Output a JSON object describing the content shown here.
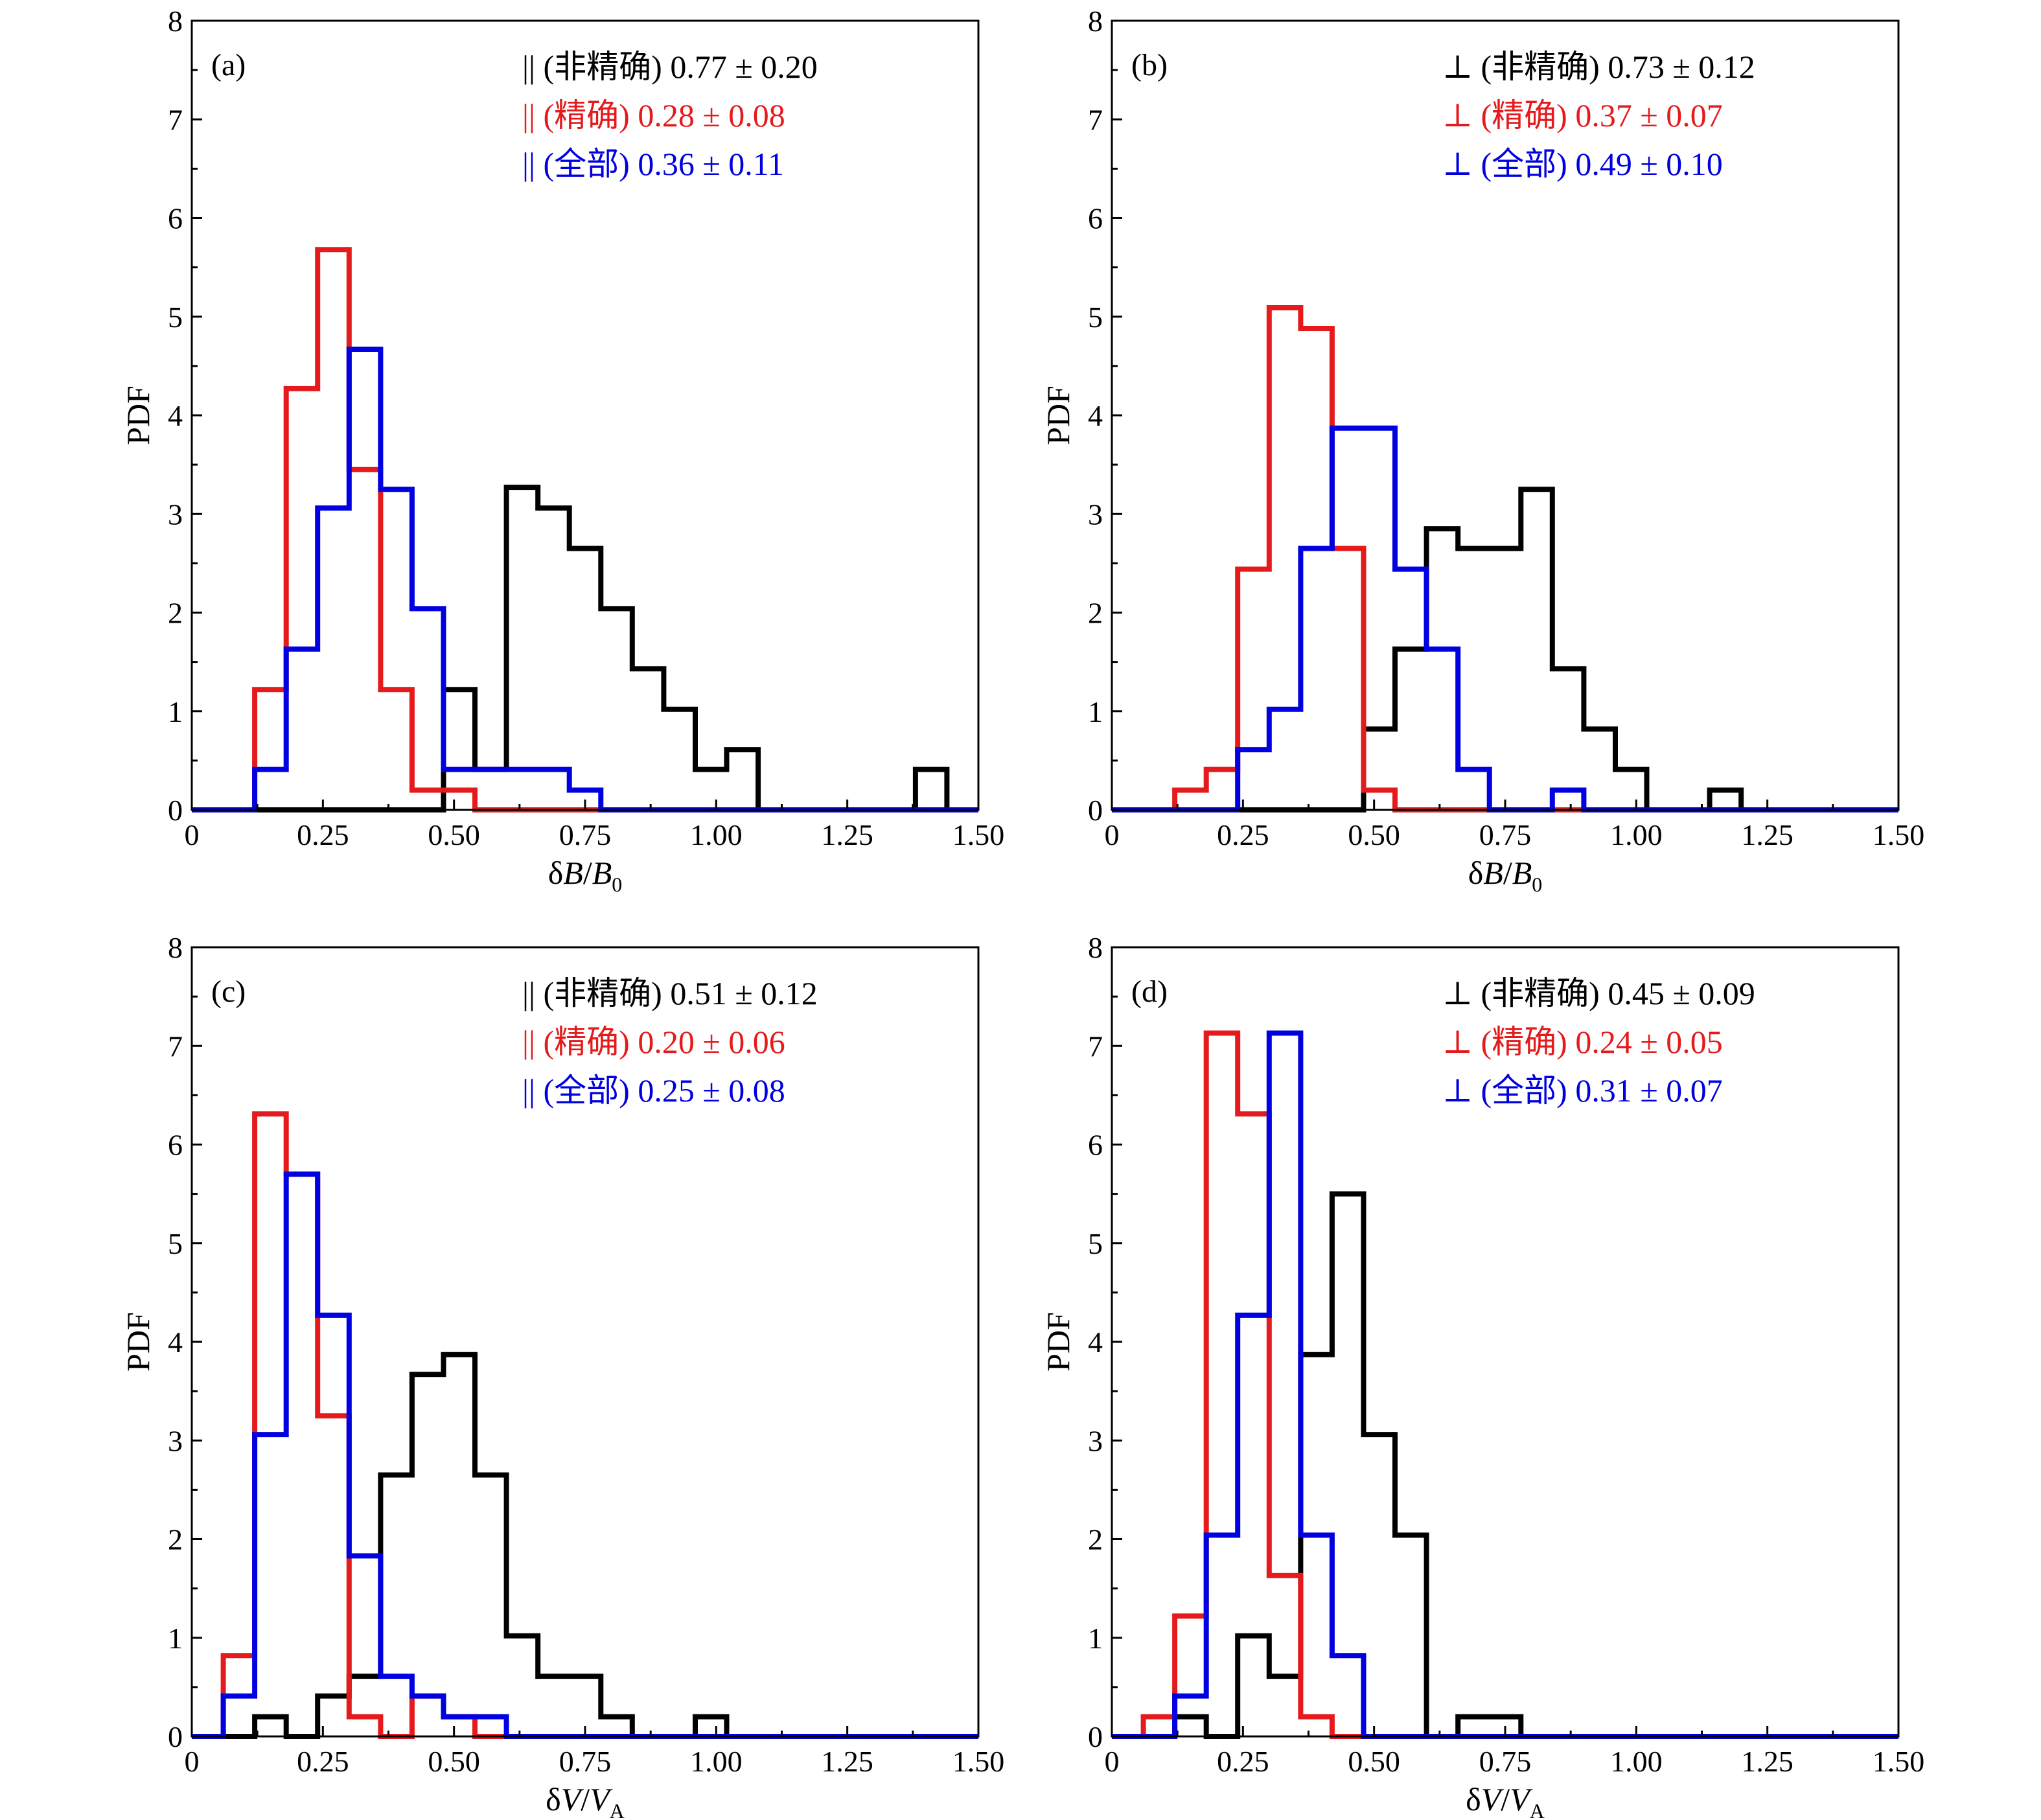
{
  "figure": {
    "colors": {
      "non_precise": "#000000",
      "precise": "#e41a1c",
      "all": "#0000e0"
    }
  },
  "chart_data": [
    {
      "panel_label": "(a)",
      "type": "bar",
      "style": "step-histogram",
      "xlabel_parts": [
        "δ",
        "B",
        "/",
        "B",
        "0"
      ],
      "ylabel": "PDF",
      "xlim": [
        0,
        1.5
      ],
      "ylim": [
        0,
        8
      ],
      "bin_width": 0.06,
      "x_ticks": [
        "0",
        "0.25",
        "0.50",
        "0.75",
        "1.00",
        "1.25",
        "1.50"
      ],
      "y_ticks": [
        "0",
        "1",
        "2",
        "3",
        "4",
        "5",
        "6",
        "7",
        "8"
      ],
      "legend": [
        {
          "series": "non_precise",
          "symbol": "||",
          "label": "(非精确)",
          "stat": "0.77 ± 0.20"
        },
        {
          "series": "precise",
          "symbol": "||",
          "label": "(精确)",
          "stat": "0.28 ± 0.08"
        },
        {
          "series": "all",
          "symbol": "||",
          "label": "(全部)",
          "stat": "0.36 ± 0.11"
        }
      ],
      "series": [
        {
          "key": "non_precise",
          "edges": [
            0,
            0.48,
            0.54,
            0.6,
            0.66,
            0.72,
            0.78,
            0.84,
            0.9,
            0.96,
            1.02,
            1.08,
            1.38,
            1.44,
            1.5
          ],
          "values": [
            0,
            1.22,
            0.41,
            3.27,
            3.06,
            2.65,
            2.04,
            1.43,
            1.02,
            0.41,
            0.61,
            0,
            0.41,
            0
          ]
        },
        {
          "key": "precise",
          "edges": [
            0,
            0.12,
            0.18,
            0.24,
            0.3,
            0.36,
            0.42,
            0.48,
            0.54,
            1.38,
            1.44,
            1.5
          ],
          "values": [
            0,
            1.22,
            4.27,
            5.68,
            3.45,
            1.22,
            0.2,
            0.2,
            0,
            0,
            0
          ]
        },
        {
          "key": "all",
          "edges": [
            0,
            0.12,
            0.18,
            0.24,
            0.3,
            0.36,
            0.42,
            0.48,
            0.54,
            0.72,
            0.78,
            1.5
          ],
          "values": [
            0,
            0.41,
            1.63,
            3.06,
            4.67,
            3.25,
            2.04,
            0.41,
            0.41,
            0.2,
            0
          ]
        }
      ]
    },
    {
      "panel_label": "(b)",
      "type": "bar",
      "style": "step-histogram",
      "xlabel_parts": [
        "δ",
        "B",
        "/",
        "B",
        "0"
      ],
      "ylabel": "PDF",
      "xlim": [
        0,
        1.5
      ],
      "ylim": [
        0,
        8
      ],
      "bin_width": 0.06,
      "x_ticks": [
        "0",
        "0.25",
        "0.50",
        "0.75",
        "1.00",
        "1.25",
        "1.50"
      ],
      "y_ticks": [
        "0",
        "1",
        "2",
        "3",
        "4",
        "5",
        "6",
        "7",
        "8"
      ],
      "legend": [
        {
          "series": "non_precise",
          "symbol": "⊥",
          "label": "(非精确)",
          "stat": "0.73 ± 0.12"
        },
        {
          "series": "precise",
          "symbol": "⊥",
          "label": "(精确)",
          "stat": "0.37 ± 0.07"
        },
        {
          "series": "all",
          "symbol": "⊥",
          "label": "(全部)",
          "stat": "0.49 ± 0.10"
        }
      ],
      "series": [
        {
          "key": "non_precise",
          "edges": [
            0,
            0.48,
            0.54,
            0.6,
            0.66,
            0.72,
            0.78,
            0.84,
            0.9,
            0.96,
            1.02,
            1.14,
            1.2,
            1.5
          ],
          "values": [
            0,
            0.82,
            1.63,
            2.85,
            2.65,
            2.65,
            3.25,
            1.43,
            0.82,
            0.41,
            0,
            0.2,
            0
          ]
        },
        {
          "key": "precise",
          "edges": [
            0,
            0.12,
            0.18,
            0.24,
            0.3,
            0.36,
            0.42,
            0.48,
            0.54,
            0.6,
            1.5
          ],
          "values": [
            0,
            0.2,
            0.41,
            2.44,
            5.09,
            4.88,
            2.65,
            0.2,
            0,
            0
          ]
        },
        {
          "key": "all",
          "edges": [
            0,
            0.24,
            0.3,
            0.36,
            0.42,
            0.48,
            0.54,
            0.6,
            0.66,
            0.72,
            0.84,
            0.9,
            1.5
          ],
          "values": [
            0,
            0.61,
            1.02,
            2.65,
            3.87,
            3.87,
            2.44,
            1.63,
            0.41,
            0,
            0.2,
            0
          ]
        }
      ]
    },
    {
      "panel_label": "(c)",
      "type": "bar",
      "style": "step-histogram",
      "xlabel_parts": [
        "δ",
        "V",
        "/",
        "V",
        "A"
      ],
      "ylabel": "PDF",
      "xlim": [
        0,
        1.5
      ],
      "ylim": [
        0,
        8
      ],
      "bin_width": 0.06,
      "x_ticks": [
        "0",
        "0.25",
        "0.50",
        "0.75",
        "1.00",
        "1.25",
        "1.50"
      ],
      "y_ticks": [
        "0",
        "1",
        "2",
        "3",
        "4",
        "5",
        "6",
        "7",
        "8"
      ],
      "legend": [
        {
          "series": "non_precise",
          "symbol": "||",
          "label": "(非精确)",
          "stat": "0.51 ± 0.12"
        },
        {
          "series": "precise",
          "symbol": "||",
          "label": "(精确)",
          "stat": "0.20 ± 0.06"
        },
        {
          "series": "all",
          "symbol": "||",
          "label": "(全部)",
          "stat": "0.25 ± 0.08"
        }
      ],
      "series": [
        {
          "key": "non_precise",
          "edges": [
            0,
            0.12,
            0.18,
            0.24,
            0.3,
            0.36,
            0.42,
            0.48,
            0.54,
            0.6,
            0.66,
            0.72,
            0.78,
            0.84,
            0.96,
            1.02,
            1.5
          ],
          "values": [
            0,
            0.2,
            0,
            0.41,
            0.61,
            2.65,
            3.67,
            3.87,
            2.65,
            1.02,
            0.61,
            0.61,
            0.2,
            0,
            0.2,
            0
          ]
        },
        {
          "key": "precise",
          "edges": [
            0,
            0.06,
            0.12,
            0.18,
            0.24,
            0.3,
            0.36,
            0.42,
            0.48,
            0.54,
            1.5
          ],
          "values": [
            0,
            0.82,
            6.31,
            5.7,
            3.25,
            0.2,
            0,
            0.41,
            0.2,
            0
          ]
        },
        {
          "key": "all",
          "edges": [
            0,
            0.06,
            0.12,
            0.18,
            0.24,
            0.3,
            0.36,
            0.42,
            0.48,
            0.6,
            1.5
          ],
          "values": [
            0,
            0.41,
            3.06,
            5.7,
            4.27,
            1.83,
            0.61,
            0.41,
            0.2,
            0
          ]
        }
      ]
    },
    {
      "panel_label": "(d)",
      "type": "bar",
      "style": "step-histogram",
      "xlabel_parts": [
        "δ",
        "V",
        "/",
        "V",
        "A"
      ],
      "ylabel": "PDF",
      "xlim": [
        0,
        1.5
      ],
      "ylim": [
        0,
        8
      ],
      "bin_width": 0.06,
      "x_ticks": [
        "0",
        "0.25",
        "0.50",
        "0.75",
        "1.00",
        "1.25",
        "1.50"
      ],
      "y_ticks": [
        "0",
        "1",
        "2",
        "3",
        "4",
        "5",
        "6",
        "7",
        "8"
      ],
      "legend": [
        {
          "series": "non_precise",
          "symbol": "⊥",
          "label": "(非精确)",
          "stat": "0.45 ± 0.09"
        },
        {
          "series": "precise",
          "symbol": "⊥",
          "label": "(精确)",
          "stat": "0.24 ± 0.05"
        },
        {
          "series": "all",
          "symbol": "⊥",
          "label": "(全部)",
          "stat": "0.31 ± 0.07"
        }
      ],
      "series": [
        {
          "key": "non_precise",
          "edges": [
            0,
            0.12,
            0.18,
            0.24,
            0.3,
            0.36,
            0.42,
            0.48,
            0.54,
            0.6,
            0.66,
            0.78,
            1.5
          ],
          "values": [
            0,
            0.2,
            0,
            1.02,
            0.61,
            3.87,
            5.5,
            3.06,
            2.04,
            0,
            0.2,
            0
          ]
        },
        {
          "key": "precise",
          "edges": [
            0,
            0.06,
            0.12,
            0.18,
            0.24,
            0.3,
            0.36,
            0.42,
            0.48,
            1.5
          ],
          "values": [
            0,
            0.2,
            1.22,
            7.13,
            6.31,
            1.63,
            0.2,
            0,
            0
          ]
        },
        {
          "key": "all",
          "edges": [
            0,
            0.12,
            0.18,
            0.24,
            0.3,
            0.36,
            0.42,
            0.48,
            1.5
          ],
          "values": [
            0,
            0.41,
            2.04,
            4.27,
            7.13,
            2.04,
            0.82,
            0
          ]
        }
      ]
    }
  ]
}
